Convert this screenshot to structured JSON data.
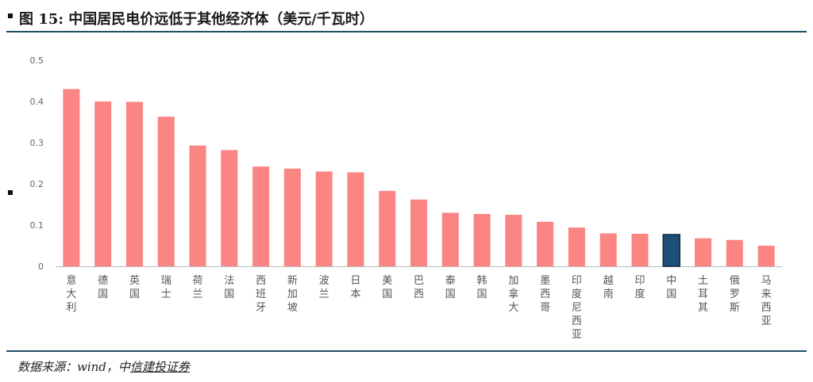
{
  "title": "图 15:  中国居民电价远低于其他经济体（美元/千瓦时）",
  "footnote": {
    "prefix": "数据来源：wind，中",
    "brand": "信建投证券"
  },
  "colors": {
    "bar": "#fa8582",
    "highlight": "#1f4e79",
    "highlight_border": "#0d2e4a",
    "rule": "#1f4e63"
  },
  "chart_data": {
    "type": "bar",
    "title": "中国居民电价远低于其他经济体（美元/千瓦时）",
    "xlabel": "",
    "ylabel": "",
    "ylim": [
      0,
      0.5
    ],
    "yticks": [
      "0",
      "0.1",
      "0.2",
      "0.3",
      "0.4",
      "0.5"
    ],
    "grid": false,
    "legend": "none",
    "highlight_index": 18,
    "categories": [
      "意大利",
      "德国",
      "英国",
      "瑞士",
      "荷兰",
      "法国",
      "西班牙",
      "新加坡",
      "波兰",
      "日本",
      "美国",
      "巴西",
      "泰国",
      "韩国",
      "加拿大",
      "墨西哥",
      "印度尼西亚",
      "越南",
      "印度",
      "中国",
      "土耳其",
      "俄罗斯",
      "马来西亚"
    ],
    "values": [
      0.43,
      0.4,
      0.399,
      0.363,
      0.293,
      0.282,
      0.242,
      0.237,
      0.23,
      0.228,
      0.183,
      0.162,
      0.13,
      0.127,
      0.125,
      0.108,
      0.094,
      0.08,
      0.079,
      0.077,
      0.068,
      0.064,
      0.05
    ]
  }
}
